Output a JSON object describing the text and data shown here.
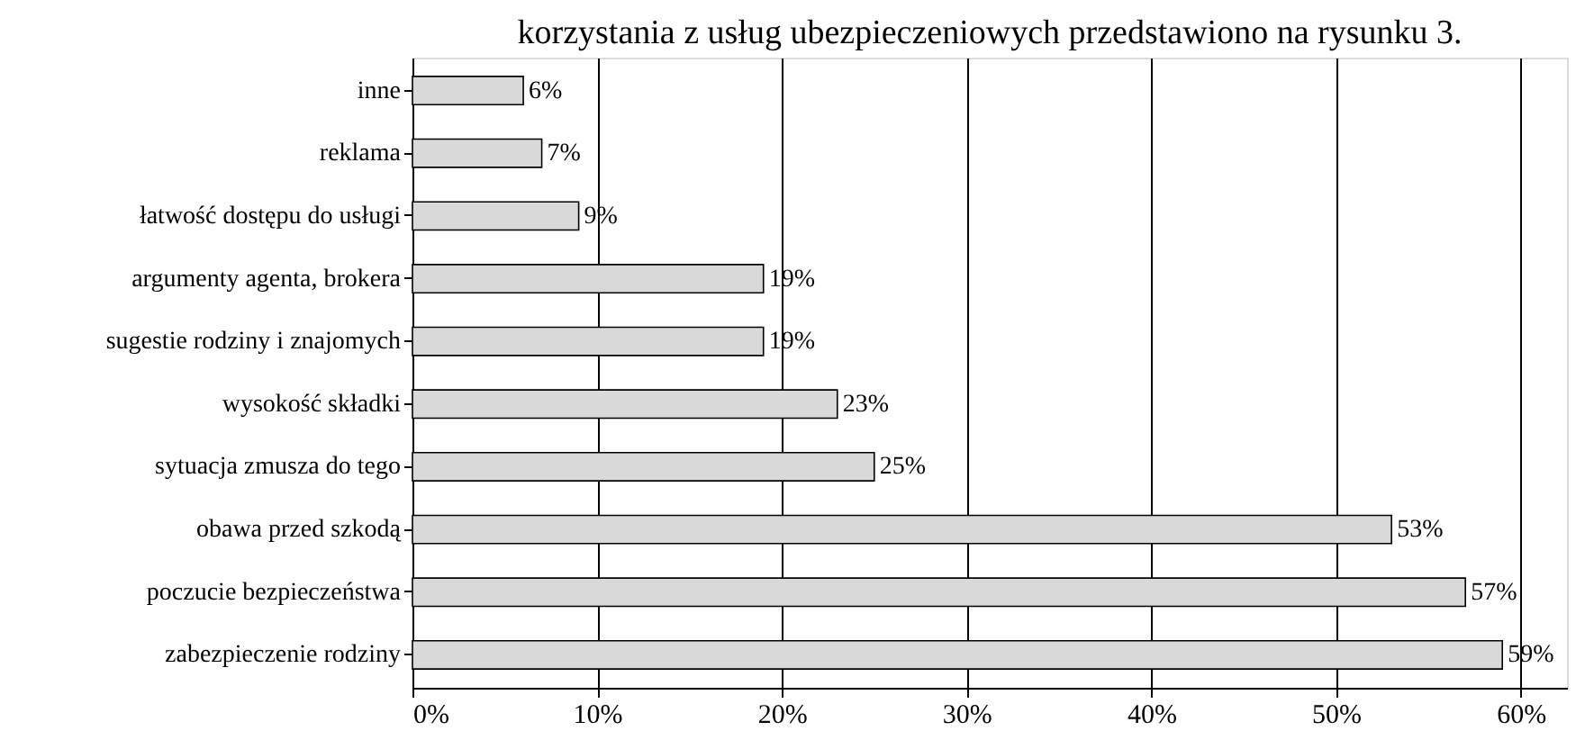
{
  "chart_data": {
    "type": "bar",
    "orientation": "horizontal",
    "annotations": [
      "korzystania z usług ubezpieczeniowych przedstawiono na rysunku 3."
    ],
    "categories": [
      "inne",
      "reklama",
      "łatwość dostępu do usługi",
      "argumenty agenta, brokera",
      "sugestie rodziny i znajomych",
      "wysokość składki",
      "sytuacja zmusza do tego",
      "obawa przed szkodą",
      "poczucie bezpieczeństwa",
      "zabezpieczenie rodziny"
    ],
    "values": [
      6,
      7,
      9,
      19,
      19,
      23,
      25,
      53,
      57,
      59
    ],
    "value_labels": [
      "6%",
      "7%",
      "9%",
      "19%",
      "19%",
      "23%",
      "25%",
      "53%",
      "57%",
      "59%"
    ],
    "color": "#d9d9d9",
    "xlim": [
      0,
      62.5
    ],
    "xticks": [
      {
        "value": 0,
        "label": "0%"
      },
      {
        "value": 10,
        "label": "10%"
      },
      {
        "value": 20,
        "label": "20%"
      },
      {
        "value": 30,
        "label": "30%"
      },
      {
        "value": 40,
        "label": "40%"
      },
      {
        "value": 50,
        "label": "50%"
      },
      {
        "value": 60,
        "label": "60%"
      }
    ],
    "grid": "x"
  }
}
